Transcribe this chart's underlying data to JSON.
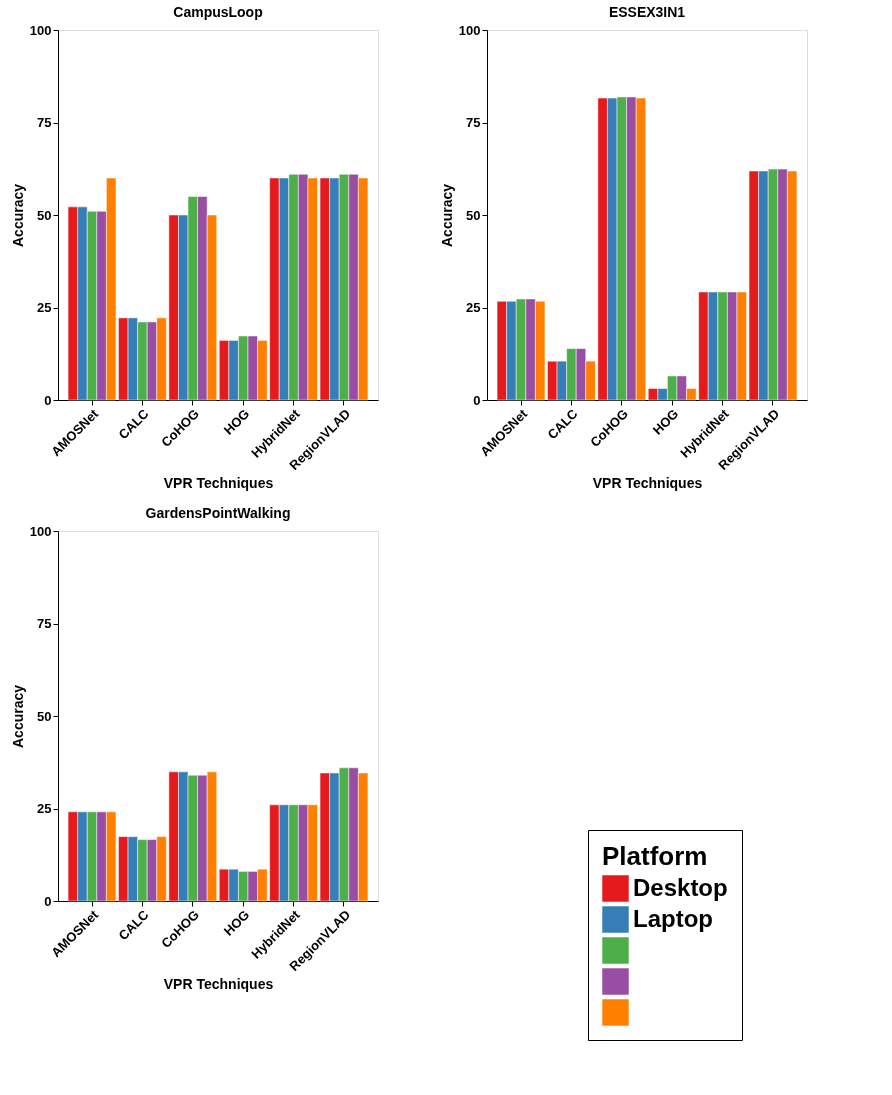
{
  "chart_data": [
    {
      "type": "bar",
      "title": "CampusLoop",
      "xlabel": "VPR Techniques",
      "ylabel": "Accuracy",
      "categories": [
        "AMOSNet",
        "CALC",
        "CoHOG",
        "HOG",
        "HybridNet",
        "RegionVLAD"
      ],
      "ylim": [
        0,
        100
      ],
      "yticks": [
        0,
        25,
        50,
        75,
        100
      ],
      "grid": false,
      "legend": "bottom right",
      "legend_title": "Platform",
      "series": [
        {
          "name": "Desktop",
          "color": "#e41a1c",
          "values": [
            52.2,
            22.2,
            50.0,
            16.1,
            60.0,
            60.0
          ]
        },
        {
          "name": "Laptop",
          "color": "#377eb8",
          "values": [
            52.2,
            22.2,
            50.0,
            16.1,
            60.0,
            60.0
          ]
        },
        {
          "color": "#4daf4a",
          "values": [
            51.0,
            21.1,
            55.0,
            17.3,
            61.0,
            61.0
          ]
        },
        {
          "color": "#984ea3",
          "values": [
            51.0,
            21.1,
            55.0,
            17.3,
            61.0,
            61.0
          ]
        },
        {
          "color": "#ff7f00",
          "values": [
            60.0,
            22.2,
            50.0,
            16.1,
            60.0,
            60.0
          ]
        }
      ]
    },
    {
      "type": "bar",
      "title": "ESSEX3IN1",
      "xlabel": "VPR Techniques",
      "ylabel": "Accuracy",
      "categories": [
        "AMOSNet",
        "CALC",
        "CoHOG",
        "HOG",
        "HybridNet",
        "RegionVLAD"
      ],
      "ylim": [
        0,
        100
      ],
      "yticks": [
        0,
        25,
        50,
        75,
        100
      ],
      "grid": false,
      "series": [
        {
          "color": "#e41a1c",
          "values": [
            26.7,
            10.5,
            81.6,
            3.1,
            29.2,
            61.9
          ]
        },
        {
          "color": "#377eb8",
          "values": [
            26.7,
            10.5,
            81.6,
            3.1,
            29.2,
            61.9
          ]
        },
        {
          "color": "#4daf4a",
          "values": [
            27.3,
            13.9,
            81.9,
            6.5,
            29.2,
            62.4
          ]
        },
        {
          "color": "#984ea3",
          "values": [
            27.3,
            13.9,
            81.9,
            6.5,
            29.2,
            62.4
          ]
        },
        {
          "color": "#ff7f00",
          "values": [
            26.7,
            10.5,
            81.6,
            3.1,
            29.2,
            61.9
          ]
        }
      ]
    },
    {
      "type": "bar",
      "title": "GardensPointWalking",
      "xlabel": "VPR Techniques",
      "ylabel": "Accuracy",
      "categories": [
        "AMOSNet",
        "CALC",
        "CoHOG",
        "HOG",
        "HybridNet",
        "RegionVLAD"
      ],
      "ylim": [
        0,
        100
      ],
      "yticks": [
        0,
        25,
        50,
        75,
        100
      ],
      "grid": false,
      "series": [
        {
          "color": "#e41a1c",
          "values": [
            24.1,
            17.4,
            34.9,
            8.6,
            26.0,
            34.6
          ]
        },
        {
          "color": "#377eb8",
          "values": [
            24.1,
            17.4,
            34.9,
            8.6,
            26.0,
            34.6
          ]
        },
        {
          "color": "#4daf4a",
          "values": [
            24.1,
            16.6,
            34.0,
            8.0,
            26.0,
            36.0
          ]
        },
        {
          "color": "#984ea3",
          "values": [
            24.1,
            16.6,
            34.0,
            8.0,
            26.0,
            36.0
          ]
        },
        {
          "color": "#ff7f00",
          "values": [
            24.1,
            17.4,
            34.9,
            8.6,
            26.0,
            34.6
          ]
        }
      ]
    }
  ]
}
